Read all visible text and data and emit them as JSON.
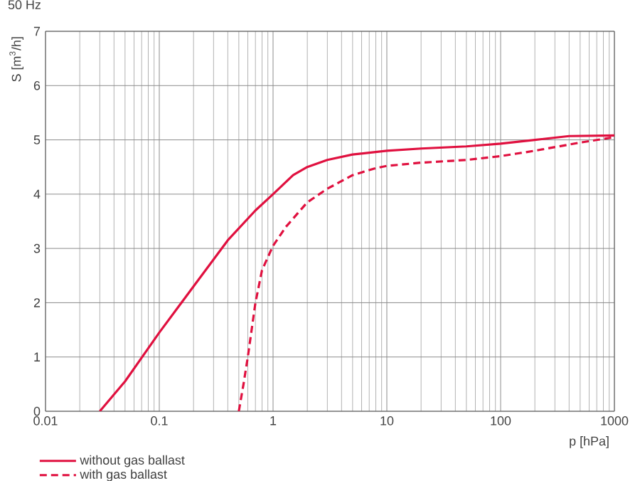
{
  "chart_data": {
    "type": "line",
    "title": "50 Hz",
    "xlabel": "p [hPa]",
    "ylabel": "S [m$^{3}$/h]",
    "log": "x",
    "grid": true,
    "legend": "bottom left",
    "xlim": [
      0.01,
      1000
    ],
    "ylim": [
      0,
      7
    ],
    "xticks": [
      0.01,
      0.1,
      1,
      10,
      100,
      1000
    ],
    "yticks": [
      0,
      1,
      2,
      3,
      4,
      5,
      6,
      7
    ],
    "series": [
      {
        "name": "without gas ballast",
        "color": "#e0103f",
        "line_style": "solid",
        "x": [
          0.03,
          0.05,
          0.1,
          0.2,
          0.4,
          0.7,
          1,
          1.5,
          2,
          3,
          5,
          10,
          20,
          50,
          100,
          200,
          400,
          1000
        ],
        "values": [
          0,
          0.55,
          1.45,
          2.3,
          3.15,
          3.7,
          4.0,
          4.35,
          4.5,
          4.63,
          4.73,
          4.8,
          4.84,
          4.88,
          4.93,
          5.0,
          5.07,
          5.08
        ]
      },
      {
        "name": "with gas ballast",
        "color": "#e0103f",
        "line_style": "dashed",
        "x": [
          0.5,
          0.55,
          0.6,
          0.7,
          0.8,
          1,
          1.3,
          2,
          3,
          5,
          8,
          10,
          20,
          50,
          100,
          200,
          500,
          1000
        ],
        "values": [
          0,
          0.5,
          1.0,
          2.0,
          2.6,
          3.05,
          3.4,
          3.85,
          4.1,
          4.35,
          4.48,
          4.52,
          4.58,
          4.63,
          4.7,
          4.8,
          4.95,
          5.05
        ]
      }
    ]
  }
}
